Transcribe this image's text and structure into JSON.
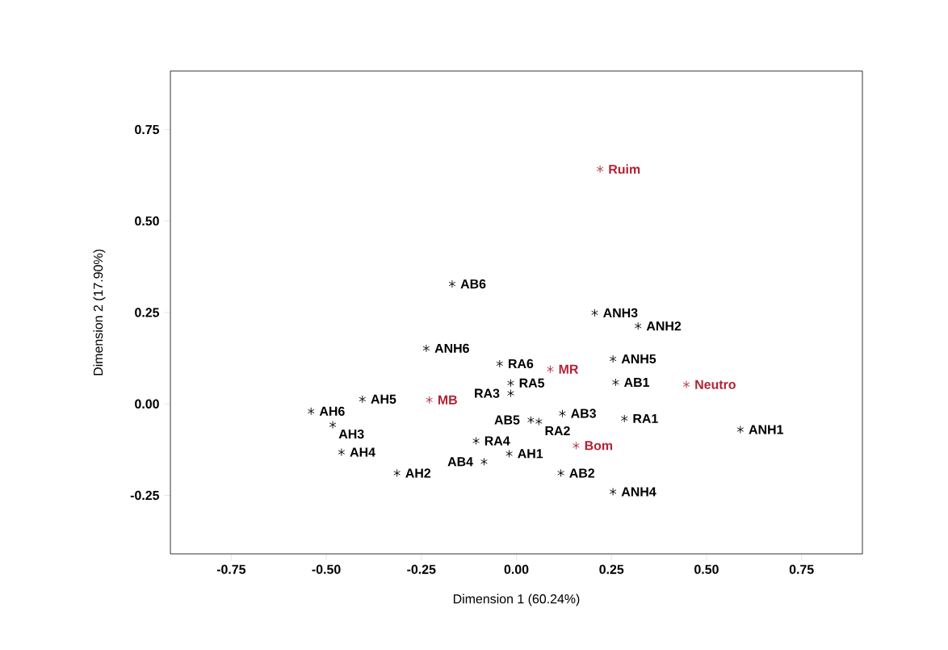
{
  "chart_data": {
    "type": "scatter",
    "xlabel": "Dimension 1 (60.24%)",
    "ylabel": "Dimension 2 (17.90%)",
    "marker": "cross",
    "xlim": [
      -0.91,
      0.91
    ],
    "ylim": [
      -0.41,
      0.91
    ],
    "xticks": [
      {
        "value": -0.75,
        "label": "-0.75"
      },
      {
        "value": -0.5,
        "label": "-0.50"
      },
      {
        "value": -0.25,
        "label": "-0.25"
      },
      {
        "value": 0,
        "label": "0.00"
      },
      {
        "value": 0.25,
        "label": "0.25"
      },
      {
        "value": 0.5,
        "label": "0.50"
      },
      {
        "value": 0.75,
        "label": "0.75"
      }
    ],
    "yticks": [
      {
        "value": -0.25,
        "label": "-0.25"
      },
      {
        "value": 0,
        "label": "0.00"
      },
      {
        "value": 0.25,
        "label": "0.25"
      },
      {
        "value": 0.5,
        "label": "0.50"
      },
      {
        "value": 0.75,
        "label": "0.75"
      }
    ],
    "series": [
      {
        "name": "Ruim",
        "color": "#b22234",
        "x": [
          0.22
        ],
        "values": [
          0.642
        ]
      },
      {
        "name": "MR",
        "color": "#b22234",
        "x": [
          0.089
        ],
        "values": [
          0.095
        ]
      },
      {
        "name": "Neutro",
        "color": "#b22234",
        "x": [
          0.447
        ],
        "values": [
          0.053
        ]
      },
      {
        "name": "MB",
        "color": "#b22234",
        "x": [
          -0.229
        ],
        "values": [
          0.011
        ]
      },
      {
        "name": "Bom",
        "color": "#b22234",
        "x": [
          0.157
        ],
        "values": [
          -0.114
        ]
      },
      {
        "name": "AB6",
        "color": "#000000",
        "x": [
          -0.169
        ],
        "values": [
          0.328
        ]
      },
      {
        "name": "ANH3",
        "color": "#000000",
        "x": [
          0.206
        ],
        "values": [
          0.249
        ]
      },
      {
        "name": "ANH2",
        "color": "#000000",
        "x": [
          0.32
        ],
        "values": [
          0.213
        ]
      },
      {
        "name": "ANH6",
        "color": "#000000",
        "x": [
          -0.237
        ],
        "values": [
          0.152
        ]
      },
      {
        "name": "RA6",
        "color": "#000000",
        "x": [
          -0.044
        ],
        "values": [
          0.11
        ]
      },
      {
        "name": "ANH5",
        "color": "#000000",
        "x": [
          0.254
        ],
        "values": [
          0.123
        ]
      },
      {
        "name": "RA5",
        "color": "#000000",
        "x": [
          -0.015
        ],
        "values": [
          0.057
        ]
      },
      {
        "name": "RA3",
        "color": "#000000",
        "x": [
          -0.015
        ],
        "values": [
          0.029
        ]
      },
      {
        "name": "AB1",
        "color": "#000000",
        "x": [
          0.261
        ],
        "values": [
          0.059
        ]
      },
      {
        "name": "AH6",
        "color": "#000000",
        "x": [
          -0.54
        ],
        "values": [
          -0.02
        ]
      },
      {
        "name": "AH5",
        "color": "#000000",
        "x": [
          -0.405
        ],
        "values": [
          0.013
        ]
      },
      {
        "name": "AH3",
        "color": "#000000",
        "x": [
          -0.483
        ],
        "values": [
          -0.057
        ]
      },
      {
        "name": "AH4",
        "color": "#000000",
        "x": [
          -0.46
        ],
        "values": [
          -0.132
        ]
      },
      {
        "name": "AH2",
        "color": "#000000",
        "x": [
          -0.314
        ],
        "values": [
          -0.189
        ]
      },
      {
        "name": "RA4",
        "color": "#000000",
        "x": [
          -0.106
        ],
        "values": [
          -0.101
        ]
      },
      {
        "name": "AB4",
        "color": "#000000",
        "x": [
          -0.085
        ],
        "values": [
          -0.158
        ]
      },
      {
        "name": "AB5",
        "color": "#000000",
        "x": [
          0.038
        ],
        "values": [
          -0.044
        ]
      },
      {
        "name": "RA2",
        "color": "#000000",
        "x": [
          0.059
        ],
        "values": [
          -0.048
        ]
      },
      {
        "name": "AB3",
        "color": "#000000",
        "x": [
          0.121
        ],
        "values": [
          -0.026
        ]
      },
      {
        "name": "RA1",
        "color": "#000000",
        "x": [
          0.284
        ],
        "values": [
          -0.04
        ]
      },
      {
        "name": "ANH1",
        "color": "#000000",
        "x": [
          0.589
        ],
        "values": [
          -0.07
        ]
      },
      {
        "name": "AH1",
        "color": "#000000",
        "x": [
          -0.019
        ],
        "values": [
          -0.136
        ]
      },
      {
        "name": "AB2",
        "color": "#000000",
        "x": [
          0.117
        ],
        "values": [
          -0.189
        ]
      },
      {
        "name": "ANH4",
        "color": "#000000",
        "x": [
          0.254
        ],
        "values": [
          -0.24
        ]
      }
    ]
  }
}
